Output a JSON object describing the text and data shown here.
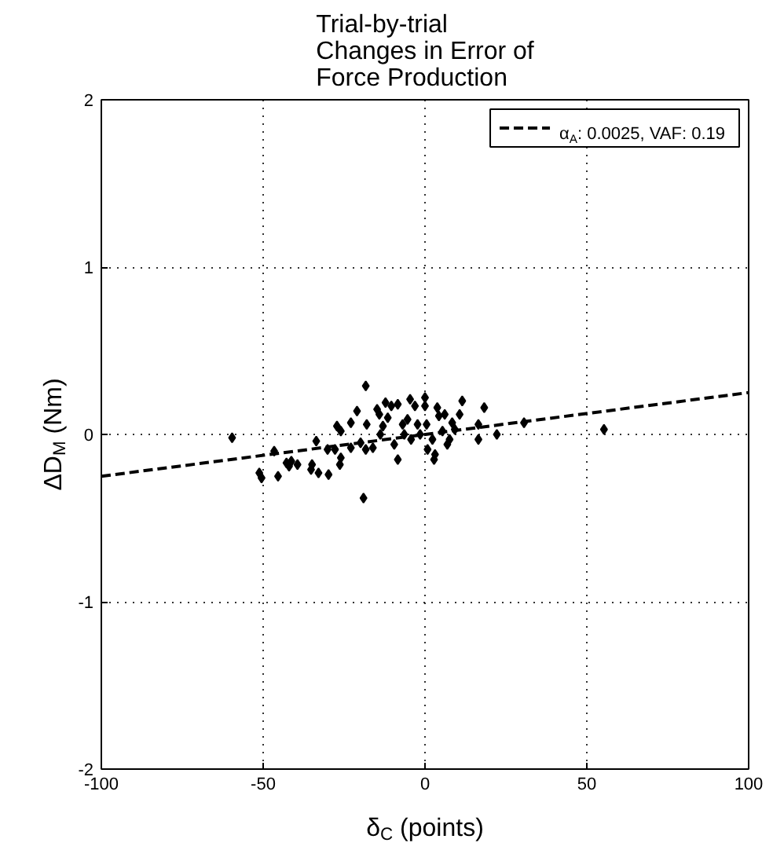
{
  "chart_data": {
    "type": "scatter",
    "title": "Trial-by-trial\nChanges in Error of\nForce Production",
    "xlabel": "δ$_{C}$ (points)",
    "ylabel": "ΔD$_{M}$ (Nm)",
    "xlim": [
      -100,
      100
    ],
    "ylim": [
      -2,
      2
    ],
    "xticks": [
      -100,
      -50,
      0,
      50,
      100
    ],
    "yticks": [
      -2,
      -1,
      0,
      1,
      2
    ],
    "grid": true,
    "legend": "top right",
    "series": [
      {
        "type": "scatter",
        "marker": "diamond",
        "color": "#000000",
        "x": [
          -59.6,
          -51.2,
          -50.5,
          -45.4,
          -46.6,
          -42.8,
          -41.3,
          -39.4,
          -42,
          -35.2,
          -34.9,
          -33.6,
          -32.9,
          -29.8,
          -30.1,
          -27.8,
          -27.2,
          -26,
          -26,
          -26.3,
          -22.9,
          -22.9,
          -21,
          -19.9,
          -18.3,
          -19,
          -18,
          -18.3,
          -16.1,
          -14.8,
          -14.1,
          -13.8,
          -13,
          -12.2,
          -11.5,
          -10.4,
          -9.5,
          -8.4,
          -8.4,
          -6.9,
          -6.4,
          -5.4,
          -4.6,
          -4.3,
          -3.1,
          -2.3,
          -1.5,
          0,
          0,
          0.5,
          0.8,
          2.3,
          3.1,
          2.8,
          3.8,
          4.3,
          5.4,
          6.1,
          6.9,
          7.6,
          8.4,
          9.2,
          11.5,
          10.7,
          18.3,
          16.5,
          16.5,
          22.2,
          30.6,
          55.3
        ],
        "values": [
          -0.02,
          -0.23,
          -0.26,
          -0.25,
          -0.1,
          -0.17,
          -0.16,
          -0.18,
          -0.19,
          -0.21,
          -0.18,
          -0.04,
          -0.23,
          -0.24,
          -0.09,
          -0.09,
          0.05,
          0.02,
          -0.14,
          -0.18,
          0.07,
          -0.08,
          0.14,
          -0.05,
          0.29,
          -0.38,
          0.06,
          -0.09,
          -0.08,
          0.15,
          0.12,
          0,
          0.05,
          0.19,
          0.1,
          0.17,
          -0.06,
          0.18,
          -0.15,
          0.06,
          0,
          0.09,
          0.21,
          -0.03,
          0.17,
          0.06,
          0,
          0.22,
          0.17,
          0.06,
          -0.09,
          -0.03,
          -0.12,
          -0.15,
          0.16,
          0.11,
          0.02,
          0.12,
          -0.06,
          -0.03,
          0.07,
          0.03,
          0.2,
          0.12,
          0.16,
          0.06,
          -0.03,
          0,
          0.07,
          0.03
        ]
      },
      {
        "type": "line",
        "name": "α$_{A}$: 0.0025, VAF: 0.19",
        "color": "#000000",
        "line_style": "dashed",
        "x": [
          -100,
          100
        ],
        "values": [
          -0.25,
          0.25
        ]
      }
    ]
  }
}
